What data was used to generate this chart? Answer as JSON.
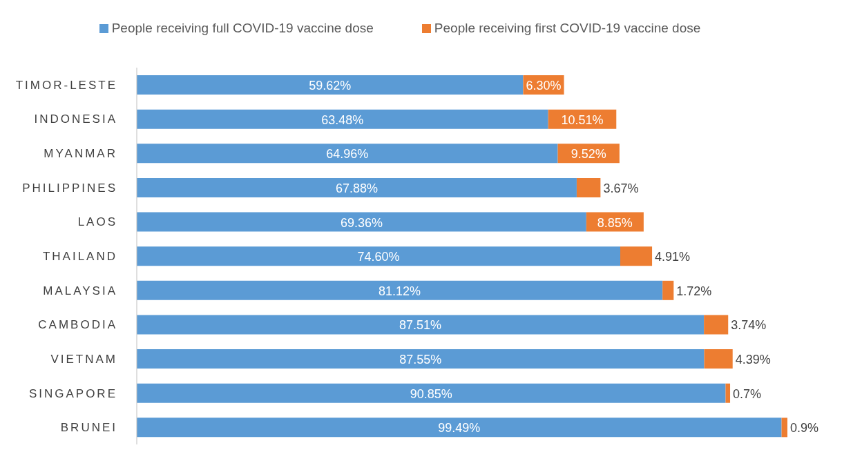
{
  "chart_data": {
    "type": "bar",
    "orientation": "horizontal",
    "stacked": true,
    "legend": "top",
    "categories": [
      "TIMOR-LESTE",
      "INDONESIA",
      "MYANMAR",
      "PHILIPPINES",
      "LAOS",
      "THAILAND",
      "MALAYSIA",
      "CAMBODIA",
      "VIETNAM",
      "SINGAPORE",
      "BRUNEI"
    ],
    "series": [
      {
        "name": "People receiving full COVID-19 vaccine dose",
        "color": "#5b9bd5",
        "values": [
          59.62,
          63.48,
          64.96,
          67.88,
          69.36,
          74.6,
          81.12,
          87.51,
          87.55,
          90.85,
          99.49
        ],
        "value_labels": [
          "59.62%",
          "63.48%",
          "64.96%",
          "67.88%",
          "69.36%",
          "74.60%",
          "81.12%",
          "87.51%",
          "87.55%",
          "90.85%",
          "99.49%"
        ]
      },
      {
        "name": "People receiving first COVID-19 vaccine dose",
        "color": "#ed7d31",
        "values": [
          6.3,
          10.51,
          9.52,
          3.67,
          8.85,
          4.91,
          1.72,
          3.74,
          4.39,
          0.7,
          0.9
        ],
        "value_labels": [
          "6.30%",
          "10.51%",
          "9.52%",
          "3.67%",
          "8.85%",
          "4.91%",
          "1.72%",
          "3.74%",
          "4.39%",
          "0.7%",
          "0.9%"
        ]
      }
    ]
  }
}
